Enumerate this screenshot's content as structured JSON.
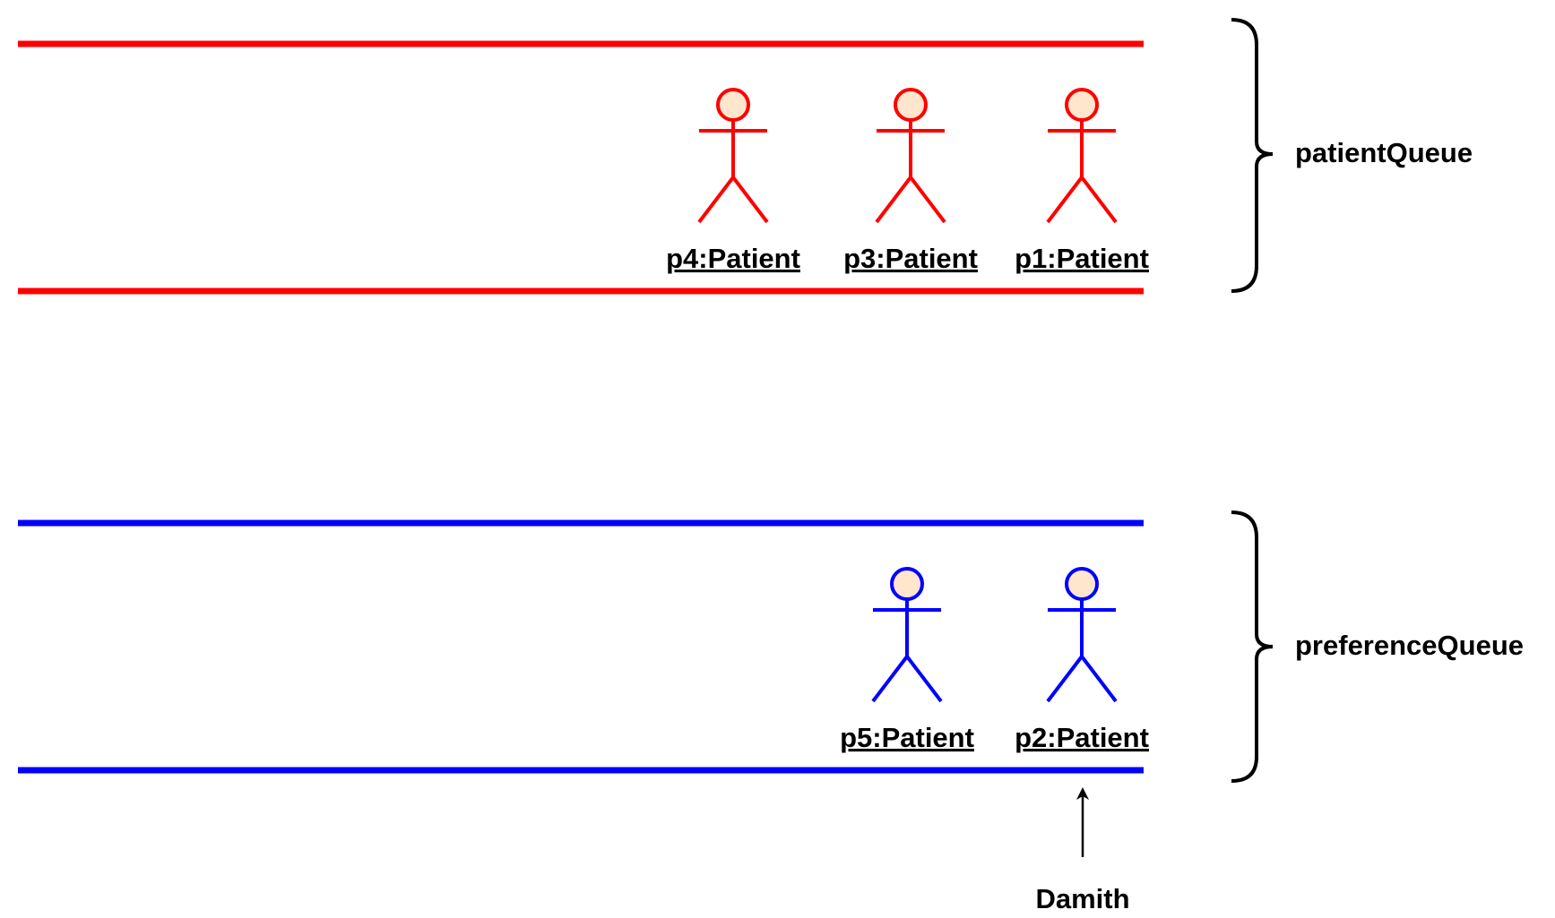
{
  "colors": {
    "patient_queue": "#ff0000",
    "preference_queue": "#0000ff",
    "actor_head_fill": "#ffe6cc",
    "text": "#000000"
  },
  "queues": [
    {
      "id": "patientQueue",
      "label": "patientQueue",
      "color": "#ff0000",
      "members": [
        {
          "id": "p4",
          "label": "p4:Patient"
        },
        {
          "id": "p3",
          "label": "p3:Patient"
        },
        {
          "id": "p1",
          "label": "p1:Patient"
        }
      ]
    },
    {
      "id": "preferenceQueue",
      "label": "preferenceQueue",
      "color": "#0000ff",
      "members": [
        {
          "id": "p5",
          "label": "p5:Patient"
        },
        {
          "id": "p2",
          "label": "p2:Patient"
        }
      ]
    }
  ],
  "pointer": {
    "label": "Damith",
    "target": "p2"
  }
}
